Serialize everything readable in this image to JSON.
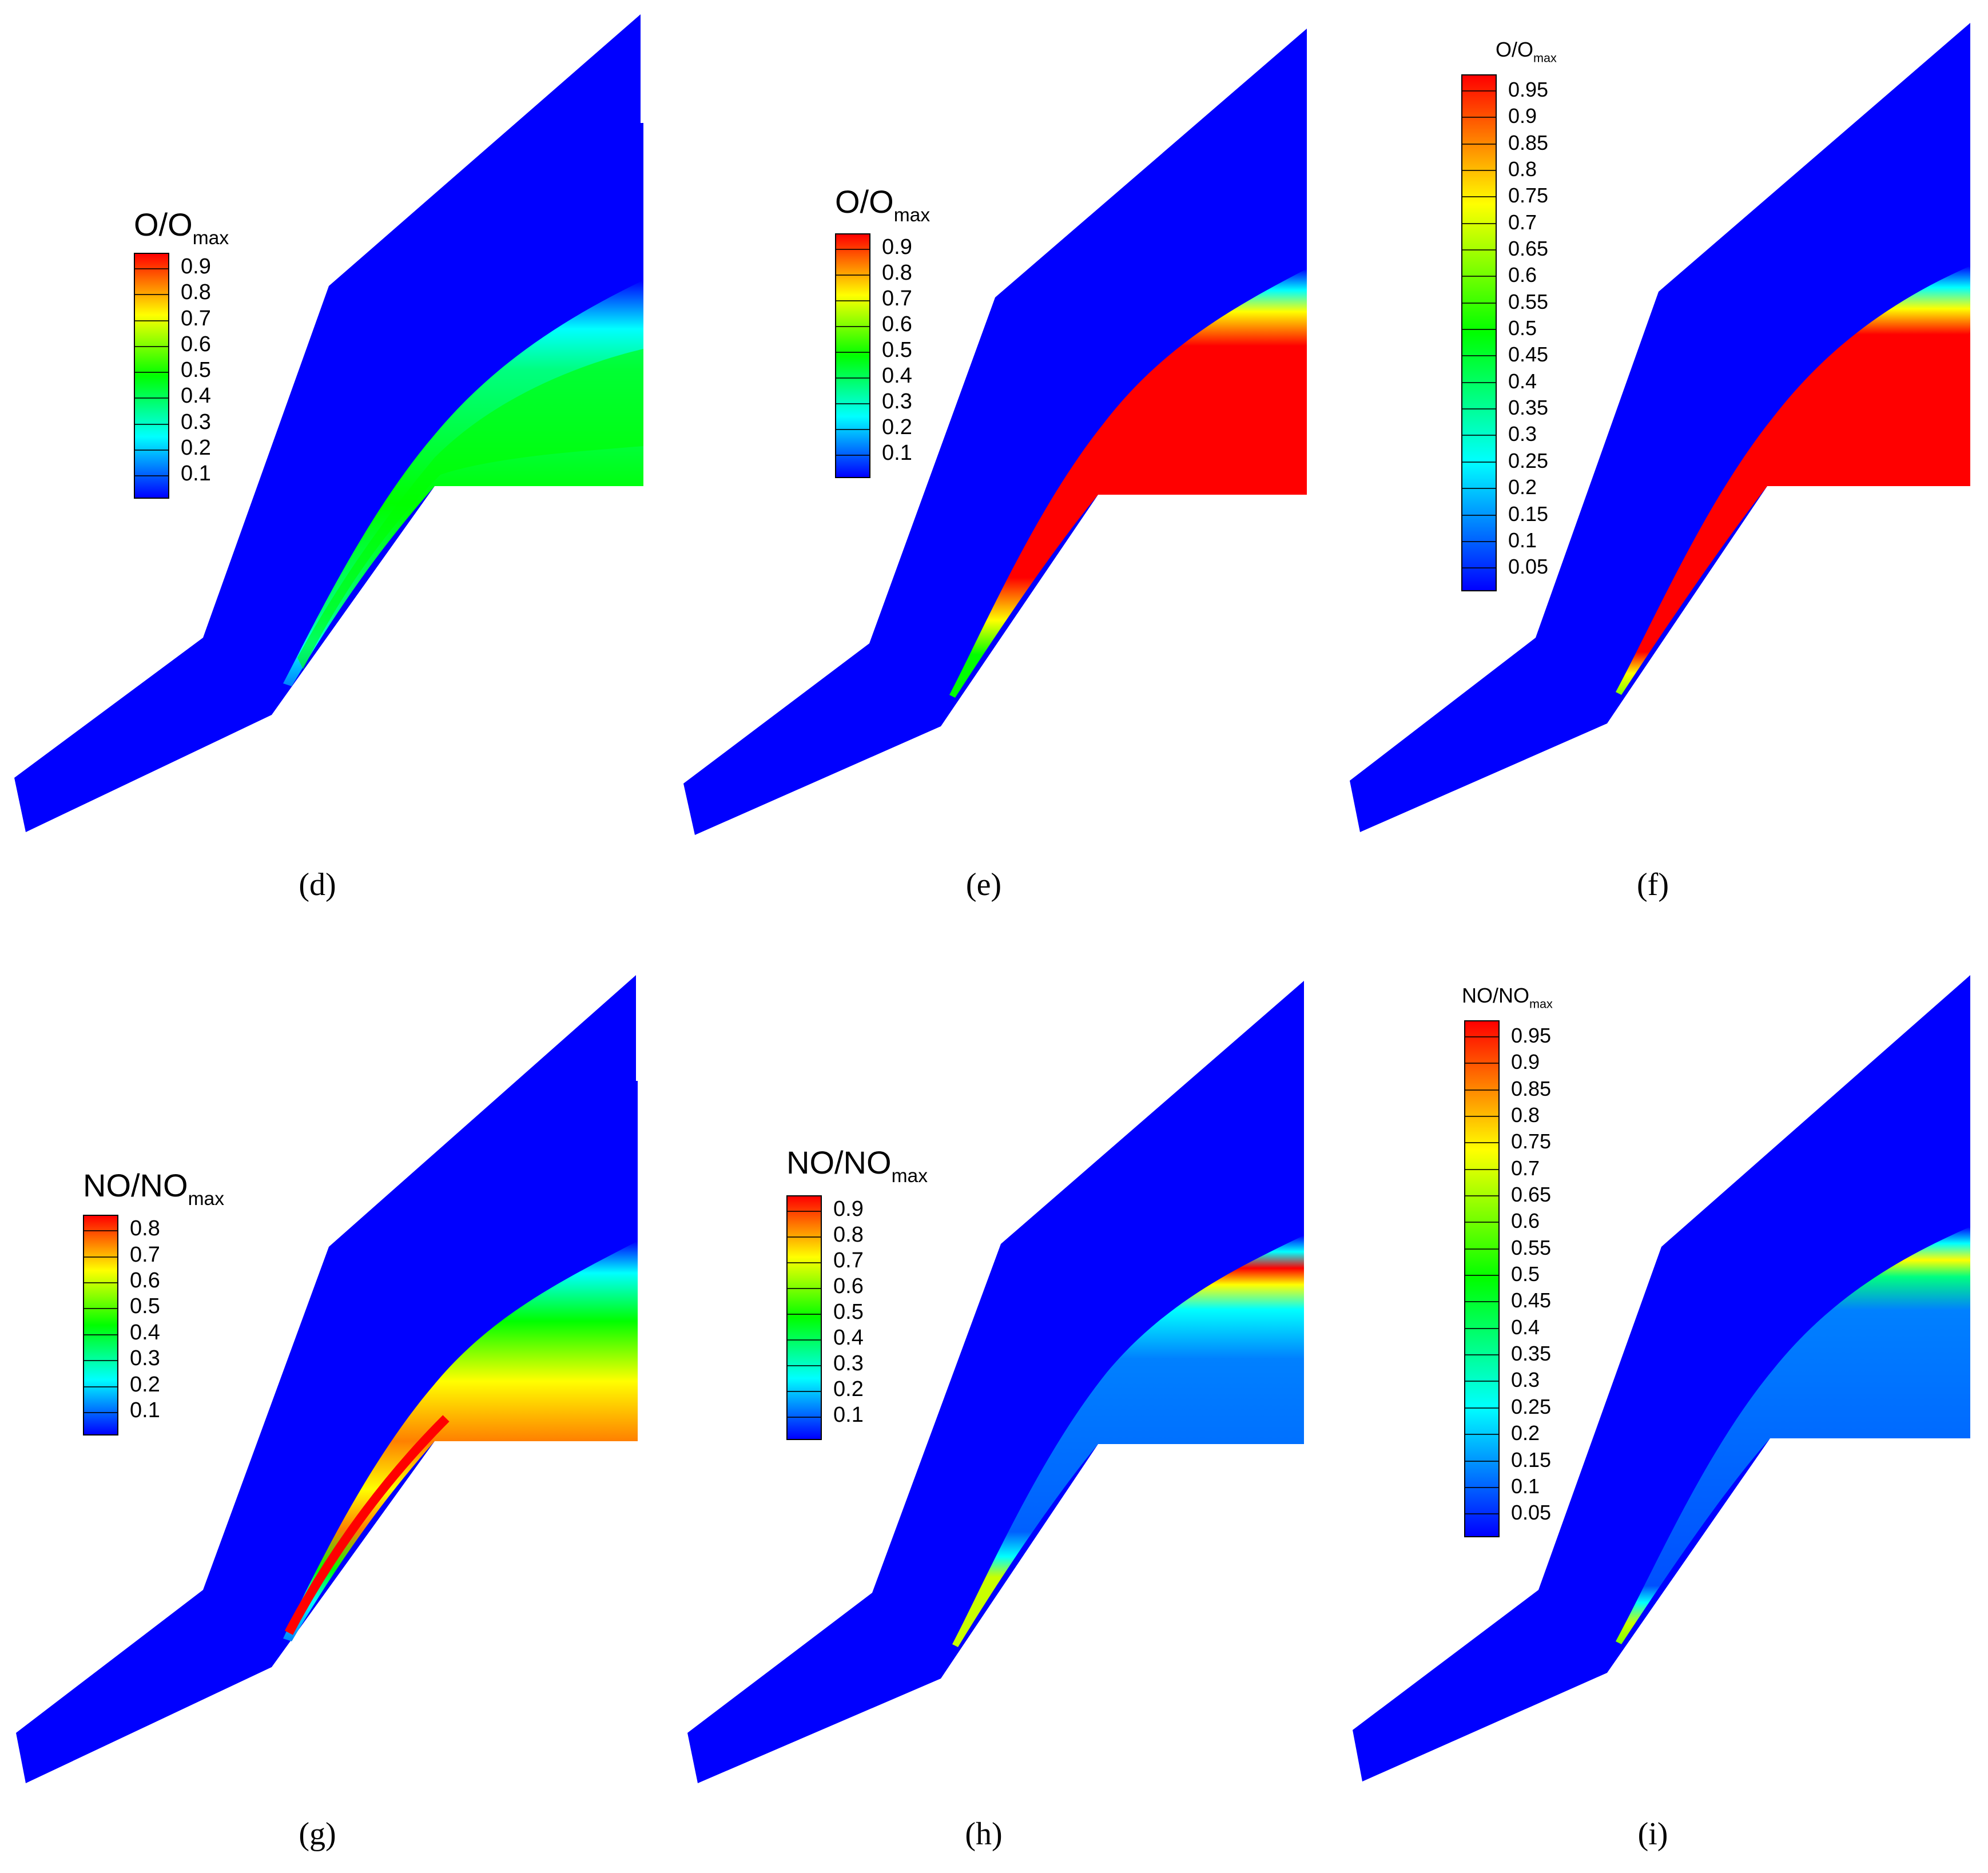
{
  "colors": {
    "background": "#0000ff",
    "cyan": "#00ffff",
    "green": "#00ff00",
    "yellow": "#ffff00",
    "orange": "#ff8c00",
    "red": "#ff0000"
  },
  "colormap": [
    "#0000ff",
    "#0080ff",
    "#00ffff",
    "#00ff80",
    "#00ff00",
    "#80ff00",
    "#ffff00",
    "#ff8000",
    "#ff0000"
  ],
  "panels": [
    {
      "caption": "(d)",
      "legend": {
        "base": "O/O",
        "sub": "max",
        "ticks": [
          "0.9",
          "0.8",
          "0.7",
          "0.6",
          "0.5",
          "0.4",
          "0.3",
          "0.2",
          "0.1"
        ]
      }
    },
    {
      "caption": "(e)",
      "legend": {
        "base": "O/O",
        "sub": "max",
        "ticks": [
          "0.9",
          "0.8",
          "0.7",
          "0.6",
          "0.5",
          "0.4",
          "0.3",
          "0.2",
          "0.1"
        ]
      }
    },
    {
      "caption": "(f)",
      "legend": {
        "base": "O/O",
        "sub": "max",
        "ticks": [
          "0.95",
          "0.9",
          "0.85",
          "0.8",
          "0.75",
          "0.7",
          "0.65",
          "0.6",
          "0.55",
          "0.5",
          "0.45",
          "0.4",
          "0.35",
          "0.3",
          "0.25",
          "0.2",
          "0.15",
          "0.1",
          "0.05"
        ]
      }
    },
    {
      "caption": "(g)",
      "legend": {
        "base": "NO/NO",
        "sub": "max",
        "ticks": [
          "0.8",
          "0.7",
          "0.6",
          "0.5",
          "0.4",
          "0.3",
          "0.2",
          "0.1"
        ]
      }
    },
    {
      "caption": "(h)",
      "legend": {
        "base": "NO/NO",
        "sub": "max",
        "ticks": [
          "0.9",
          "0.8",
          "0.7",
          "0.6",
          "0.5",
          "0.4",
          "0.3",
          "0.2",
          "0.1"
        ]
      }
    },
    {
      "caption": "(i)",
      "legend": {
        "base": "NO/NO",
        "sub": "max",
        "ticks": [
          "0.95",
          "0.9",
          "0.85",
          "0.8",
          "0.75",
          "0.7",
          "0.65",
          "0.6",
          "0.55",
          "0.5",
          "0.45",
          "0.4",
          "0.35",
          "0.3",
          "0.25",
          "0.2",
          "0.15",
          "0.1",
          "0.05"
        ]
      }
    }
  ]
}
